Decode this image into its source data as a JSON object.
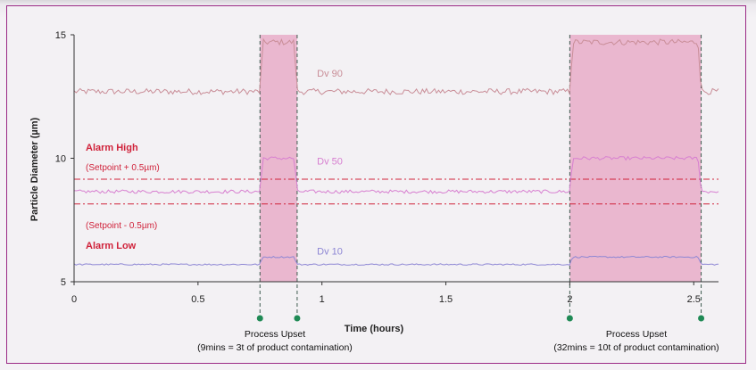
{
  "chart_data": {
    "type": "line",
    "title": "",
    "xlabel": "Time (hours)",
    "ylabel": "Particle Diameter (µm)",
    "xlim": [
      0,
      2.6
    ],
    "ylim": [
      5,
      15
    ],
    "x_ticks": [
      {
        "value": 0,
        "label": "0"
      },
      {
        "value": 0.5,
        "label": "0.5"
      },
      {
        "value": 1,
        "label": "1"
      },
      {
        "value": 1.5,
        "label": "1.5"
      },
      {
        "value": 2,
        "label": "2"
      },
      {
        "value": 2.5,
        "label": "2.5"
      }
    ],
    "y_ticks": [
      {
        "value": 5,
        "label": "5"
      },
      {
        "value": 10,
        "label": "10"
      },
      {
        "value": 15,
        "label": "15"
      }
    ],
    "grid": false,
    "series": [
      {
        "name": "Dv 90",
        "color": "#c98e98",
        "baseline": 12.7,
        "upset_level": 14.7,
        "noise": 0.12,
        "label_x": 0.98,
        "label_y": 13.3
      },
      {
        "name": "Dv 50",
        "color": "#d77fd0",
        "baseline": 8.65,
        "upset_level": 10.0,
        "noise": 0.07,
        "label_x": 0.98,
        "label_y": 9.75
      },
      {
        "name": "Dv 10",
        "color": "#8d86d4",
        "baseline": 5.7,
        "upset_level": 6.0,
        "noise": 0.03,
        "label_x": 0.98,
        "label_y": 6.1
      }
    ],
    "alarm_lines": [
      {
        "value": 9.15,
        "color": "#d0223a"
      },
      {
        "value": 8.15,
        "color": "#d0223a"
      }
    ],
    "upset_regions": [
      {
        "start": 0.75,
        "end": 0.9
      },
      {
        "start": 2.0,
        "end": 2.53
      }
    ],
    "annotations": {
      "alarm_high": "Alarm High",
      "setpoint_high": "(Setpoint + 0.5µm)",
      "setpoint_low": "(Setpoint - 0.5µm)",
      "alarm_low": "Alarm Low",
      "upset_1_title": "Process Upset",
      "upset_1_detail": "(9mins = 3t of product contamination)",
      "upset_2_title": "Process Upset",
      "upset_2_detail": "(32mins = 10t of product contamination)"
    }
  }
}
